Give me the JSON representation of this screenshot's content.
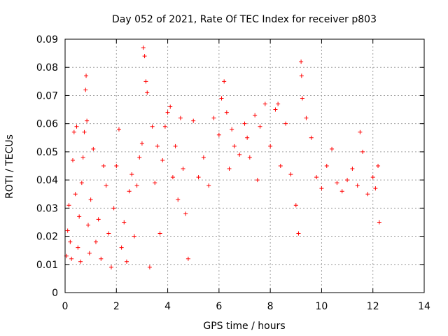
{
  "chart_data": {
    "type": "scatter",
    "title": "Day 052 of 2021, Rate Of TEC Index for receiver p803",
    "xlabel": "GPS time / hours",
    "ylabel": "ROTI / TECUs",
    "xlim": [
      0,
      14
    ],
    "ylim": [
      0,
      0.09
    ],
    "x_ticks": [
      0,
      2,
      4,
      6,
      8,
      10,
      12,
      14
    ],
    "x_tick_labels": [
      "0",
      "2",
      "4",
      "6",
      "8",
      "10",
      "12",
      "14"
    ],
    "y_ticks": [
      0,
      0.01,
      0.02,
      0.03,
      0.04,
      0.05,
      0.06,
      0.07,
      0.08,
      0.09
    ],
    "y_tick_labels": [
      "0",
      "0.01",
      "0.02",
      "0.03",
      "0.04",
      "0.05",
      "0.06",
      "0.07",
      "0.08",
      "0.09"
    ],
    "grid": true,
    "marker": "+",
    "color": "#ff0000",
    "data_extent_hours": [
      0,
      12.3
    ],
    "series": [
      {
        "name": "ROTI",
        "points": [
          [
            0.05,
            0.013
          ],
          [
            0.1,
            0.022
          ],
          [
            0.15,
            0.031
          ],
          [
            0.2,
            0.018
          ],
          [
            0.25,
            0.012
          ],
          [
            0.3,
            0.047
          ],
          [
            0.35,
            0.057
          ],
          [
            0.4,
            0.035
          ],
          [
            0.45,
            0.059
          ],
          [
            0.5,
            0.016
          ],
          [
            0.55,
            0.027
          ],
          [
            0.6,
            0.011
          ],
          [
            0.65,
            0.039
          ],
          [
            0.7,
            0.048
          ],
          [
            0.75,
            0.057
          ],
          [
            0.8,
            0.072
          ],
          [
            0.82,
            0.077
          ],
          [
            0.85,
            0.061
          ],
          [
            0.9,
            0.024
          ],
          [
            0.95,
            0.014
          ],
          [
            1.0,
            0.033
          ],
          [
            1.1,
            0.051
          ],
          [
            1.2,
            0.018
          ],
          [
            1.3,
            0.026
          ],
          [
            1.4,
            0.012
          ],
          [
            1.5,
            0.045
          ],
          [
            1.6,
            0.038
          ],
          [
            1.7,
            0.021
          ],
          [
            1.8,
            0.009
          ],
          [
            1.9,
            0.03
          ],
          [
            2.0,
            0.045
          ],
          [
            2.1,
            0.058
          ],
          [
            2.2,
            0.016
          ],
          [
            2.3,
            0.025
          ],
          [
            2.4,
            0.011
          ],
          [
            2.5,
            0.036
          ],
          [
            2.6,
            0.042
          ],
          [
            2.7,
            0.02
          ],
          [
            2.8,
            0.038
          ],
          [
            2.9,
            0.048
          ],
          [
            3.0,
            0.053
          ],
          [
            3.05,
            0.087
          ],
          [
            3.1,
            0.084
          ],
          [
            3.15,
            0.075
          ],
          [
            3.2,
            0.071
          ],
          [
            3.3,
            0.009
          ],
          [
            3.4,
            0.059
          ],
          [
            3.5,
            0.039
          ],
          [
            3.6,
            0.052
          ],
          [
            3.7,
            0.021
          ],
          [
            3.8,
            0.047
          ],
          [
            3.9,
            0.059
          ],
          [
            4.0,
            0.064
          ],
          [
            4.1,
            0.066
          ],
          [
            4.2,
            0.041
          ],
          [
            4.3,
            0.052
          ],
          [
            4.4,
            0.033
          ],
          [
            4.5,
            0.062
          ],
          [
            4.6,
            0.044
          ],
          [
            4.7,
            0.028
          ],
          [
            4.8,
            0.012
          ],
          [
            5.0,
            0.061
          ],
          [
            5.2,
            0.041
          ],
          [
            5.4,
            0.048
          ],
          [
            5.6,
            0.038
          ],
          [
            5.8,
            0.062
          ],
          [
            6.0,
            0.056
          ],
          [
            6.1,
            0.069
          ],
          [
            6.2,
            0.075
          ],
          [
            6.3,
            0.064
          ],
          [
            6.4,
            0.044
          ],
          [
            6.5,
            0.058
          ],
          [
            6.6,
            0.052
          ],
          [
            6.8,
            0.049
          ],
          [
            7.0,
            0.06
          ],
          [
            7.1,
            0.055
          ],
          [
            7.2,
            0.048
          ],
          [
            7.4,
            0.063
          ],
          [
            7.5,
            0.04
          ],
          [
            7.6,
            0.059
          ],
          [
            7.8,
            0.067
          ],
          [
            8.0,
            0.052
          ],
          [
            8.2,
            0.065
          ],
          [
            8.3,
            0.067
          ],
          [
            8.4,
            0.045
          ],
          [
            8.6,
            0.06
          ],
          [
            8.8,
            0.042
          ],
          [
            9.0,
            0.031
          ],
          [
            9.1,
            0.021
          ],
          [
            9.2,
            0.082
          ],
          [
            9.22,
            0.077
          ],
          [
            9.25,
            0.069
          ],
          [
            9.4,
            0.062
          ],
          [
            9.6,
            0.055
          ],
          [
            9.8,
            0.041
          ],
          [
            10.0,
            0.037
          ],
          [
            10.2,
            0.045
          ],
          [
            10.4,
            0.051
          ],
          [
            10.6,
            0.039
          ],
          [
            10.8,
            0.036
          ],
          [
            11.0,
            0.04
          ],
          [
            11.2,
            0.044
          ],
          [
            11.4,
            0.038
          ],
          [
            11.5,
            0.057
          ],
          [
            11.6,
            0.05
          ],
          [
            11.8,
            0.035
          ],
          [
            12.0,
            0.041
          ],
          [
            12.1,
            0.037
          ],
          [
            12.2,
            0.045
          ],
          [
            12.25,
            0.025
          ]
        ]
      }
    ]
  }
}
